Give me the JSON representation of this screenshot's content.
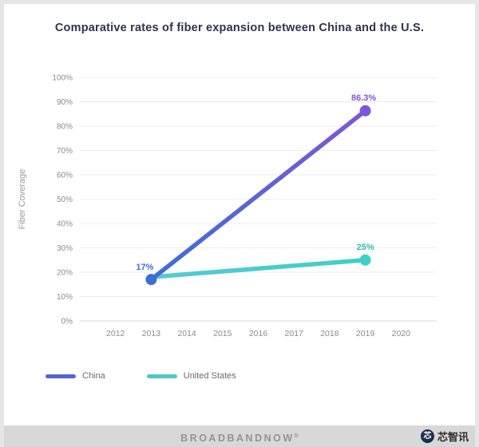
{
  "page": {
    "title": "Comparative rates of fiber expansion between China and the U.S."
  },
  "footer": {
    "brand": "BROADBANDNOW",
    "reg": "®"
  },
  "watermark": {
    "logo_char": "芯",
    "text": "芯智讯"
  },
  "chart_data": {
    "type": "line",
    "title": "Comparative rates of fiber expansion between China and the U.S.",
    "xlabel": "",
    "ylabel": "Fiber Coverage",
    "x_ticks": [
      "2012",
      "2013",
      "2014",
      "2015",
      "2016",
      "2017",
      "2018",
      "2019",
      "2020"
    ],
    "xlim": [
      2011,
      2021
    ],
    "y_ticks": [
      "0%",
      "10%",
      "20%",
      "30%",
      "40%",
      "50%",
      "60%",
      "70%",
      "80%",
      "90%",
      "100%"
    ],
    "ylim": [
      0,
      100
    ],
    "grid": "horizontal",
    "legend_position": "bottom-left",
    "series": [
      {
        "name": "China",
        "x": [
          2013,
          2019
        ],
        "values": [
          17,
          86.3
        ],
        "point_labels": [
          "17%",
          "86.3%"
        ],
        "label_colors": [
          "#3c6fd6",
          "#7e57d8"
        ],
        "color_start": "#3c6fd6",
        "color_end": "#7e57d8",
        "legend_color": "#5463d8",
        "label_offsets": [
          [
            -8,
            -12
          ],
          [
            -2,
            -13
          ]
        ]
      },
      {
        "name": "United States",
        "x": [
          2013,
          2019
        ],
        "values": [
          18,
          25
        ],
        "point_labels": [
          "",
          "25%"
        ],
        "label_colors": [
          "#35b8b8",
          "#2fbdb4"
        ],
        "color_start": "#56c9d8",
        "color_end": "#3ed0c4",
        "legend_color": "#4cc8c8",
        "label_offsets": [
          [
            0,
            0
          ],
          [
            0,
            -13
          ]
        ]
      }
    ]
  }
}
